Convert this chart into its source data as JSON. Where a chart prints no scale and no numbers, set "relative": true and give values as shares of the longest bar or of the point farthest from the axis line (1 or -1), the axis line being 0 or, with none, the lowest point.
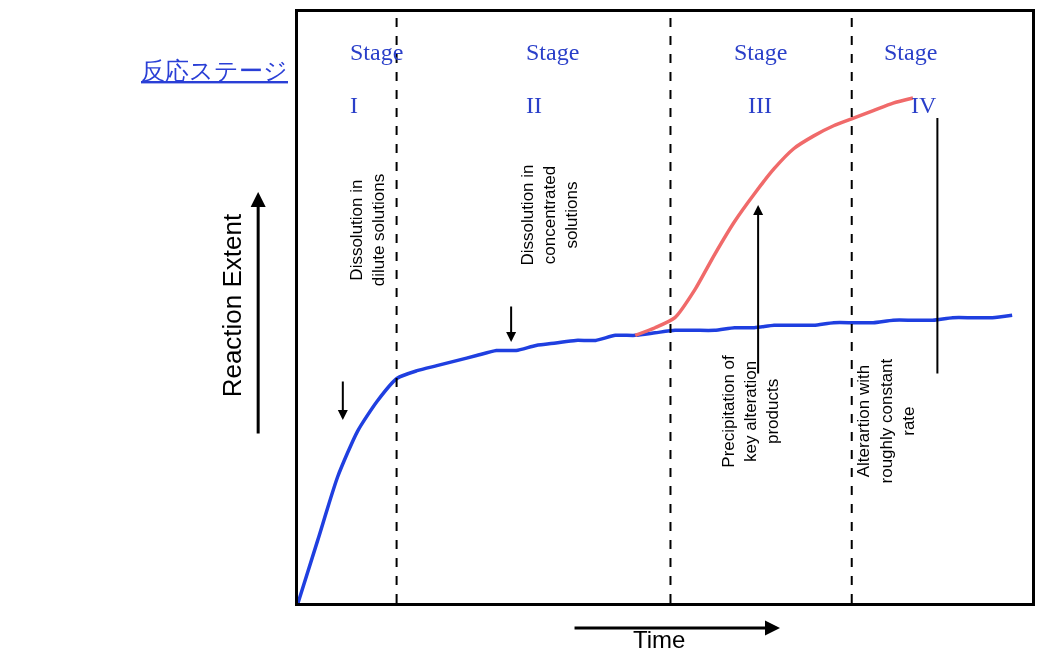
{
  "chart_data": {
    "type": "line",
    "title": "反応ステージ",
    "xlabel": "Time",
    "ylabel": "Reaction Extent",
    "relative": true,
    "marker": "none",
    "line_style": "solid",
    "categories": [
      null,
      null,
      null,
      null,
      null,
      null,
      null,
      null,
      null,
      null,
      null,
      null,
      null,
      null,
      null,
      null,
      null,
      null,
      null,
      null,
      null,
      null,
      null,
      null,
      null,
      null,
      null,
      null,
      null,
      null,
      null,
      null,
      null,
      null,
      null,
      null,
      null,
      null
    ],
    "series": [
      {
        "color": "#1f3fe0",
        "values": [
          0,
          0.125,
          0.25,
          0.34,
          0.4,
          0.445,
          0.46,
          0.47,
          0.48,
          0.49,
          0.5,
          0.5,
          0.51,
          0.515,
          0.52,
          0.52,
          0.53,
          0.53,
          0.535,
          0.54,
          0.54,
          0.54,
          0.545,
          0.545,
          0.55,
          0.55,
          0.55,
          0.555,
          0.555,
          0.555,
          0.56,
          0.56,
          0.56,
          0.565,
          0.565,
          0.565,
          0.57,
          null
        ]
      },
      {
        "color": "#f06a6a",
        "values": [
          null,
          null,
          null,
          null,
          null,
          null,
          null,
          null,
          null,
          null,
          null,
          null,
          null,
          null,
          null,
          null,
          null,
          0.53,
          0.545,
          0.565,
          0.62,
          0.69,
          0.755,
          0.81,
          0.86,
          0.9,
          0.925,
          0.945,
          0.96,
          0.975,
          0.99,
          1.0,
          null,
          null,
          null,
          null,
          null,
          null
        ]
      }
    ],
    "annotations": [
      "Stage\nI",
      "Stage\nII",
      "Stage\nIII",
      "Stage\nIV",
      "Dissolution in\ndilute solutions",
      "Dissolution in\nconcentrated\nsolutions",
      "Precipitation of\nkey alteration\nproducts",
      "Alterartion with\nroughly constant\nrate"
    ]
  }
}
